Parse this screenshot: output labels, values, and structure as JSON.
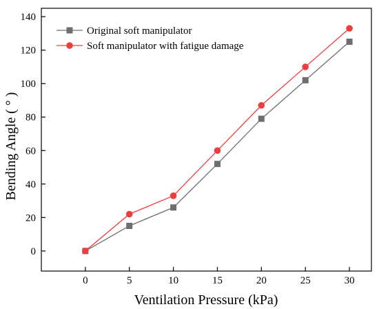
{
  "chart_data": {
    "type": "line",
    "xlabel": "Ventilation Pressure (kPa)",
    "ylabel": "Bending Angle ( ° )",
    "x": [
      0,
      5,
      10,
      15,
      20,
      25,
      30
    ],
    "xlim": [
      -5,
      32.5
    ],
    "ylim": [
      -12,
      145
    ],
    "xticks": [
      0,
      5,
      10,
      15,
      20,
      25,
      30
    ],
    "yticks": [
      0,
      20,
      40,
      60,
      80,
      100,
      120,
      140
    ],
    "grid": false,
    "legend_position": "top-left",
    "series": [
      {
        "name": "Original soft manipulator",
        "values": [
          0,
          15,
          26,
          52,
          79,
          102,
          125
        ],
        "color": "#6e6e6e",
        "marker": "square"
      },
      {
        "name": "Soft manipulator with fatigue damage",
        "values": [
          0,
          22,
          33,
          60,
          87,
          110,
          133
        ],
        "color": "#f03c3c",
        "marker": "circle"
      }
    ]
  }
}
